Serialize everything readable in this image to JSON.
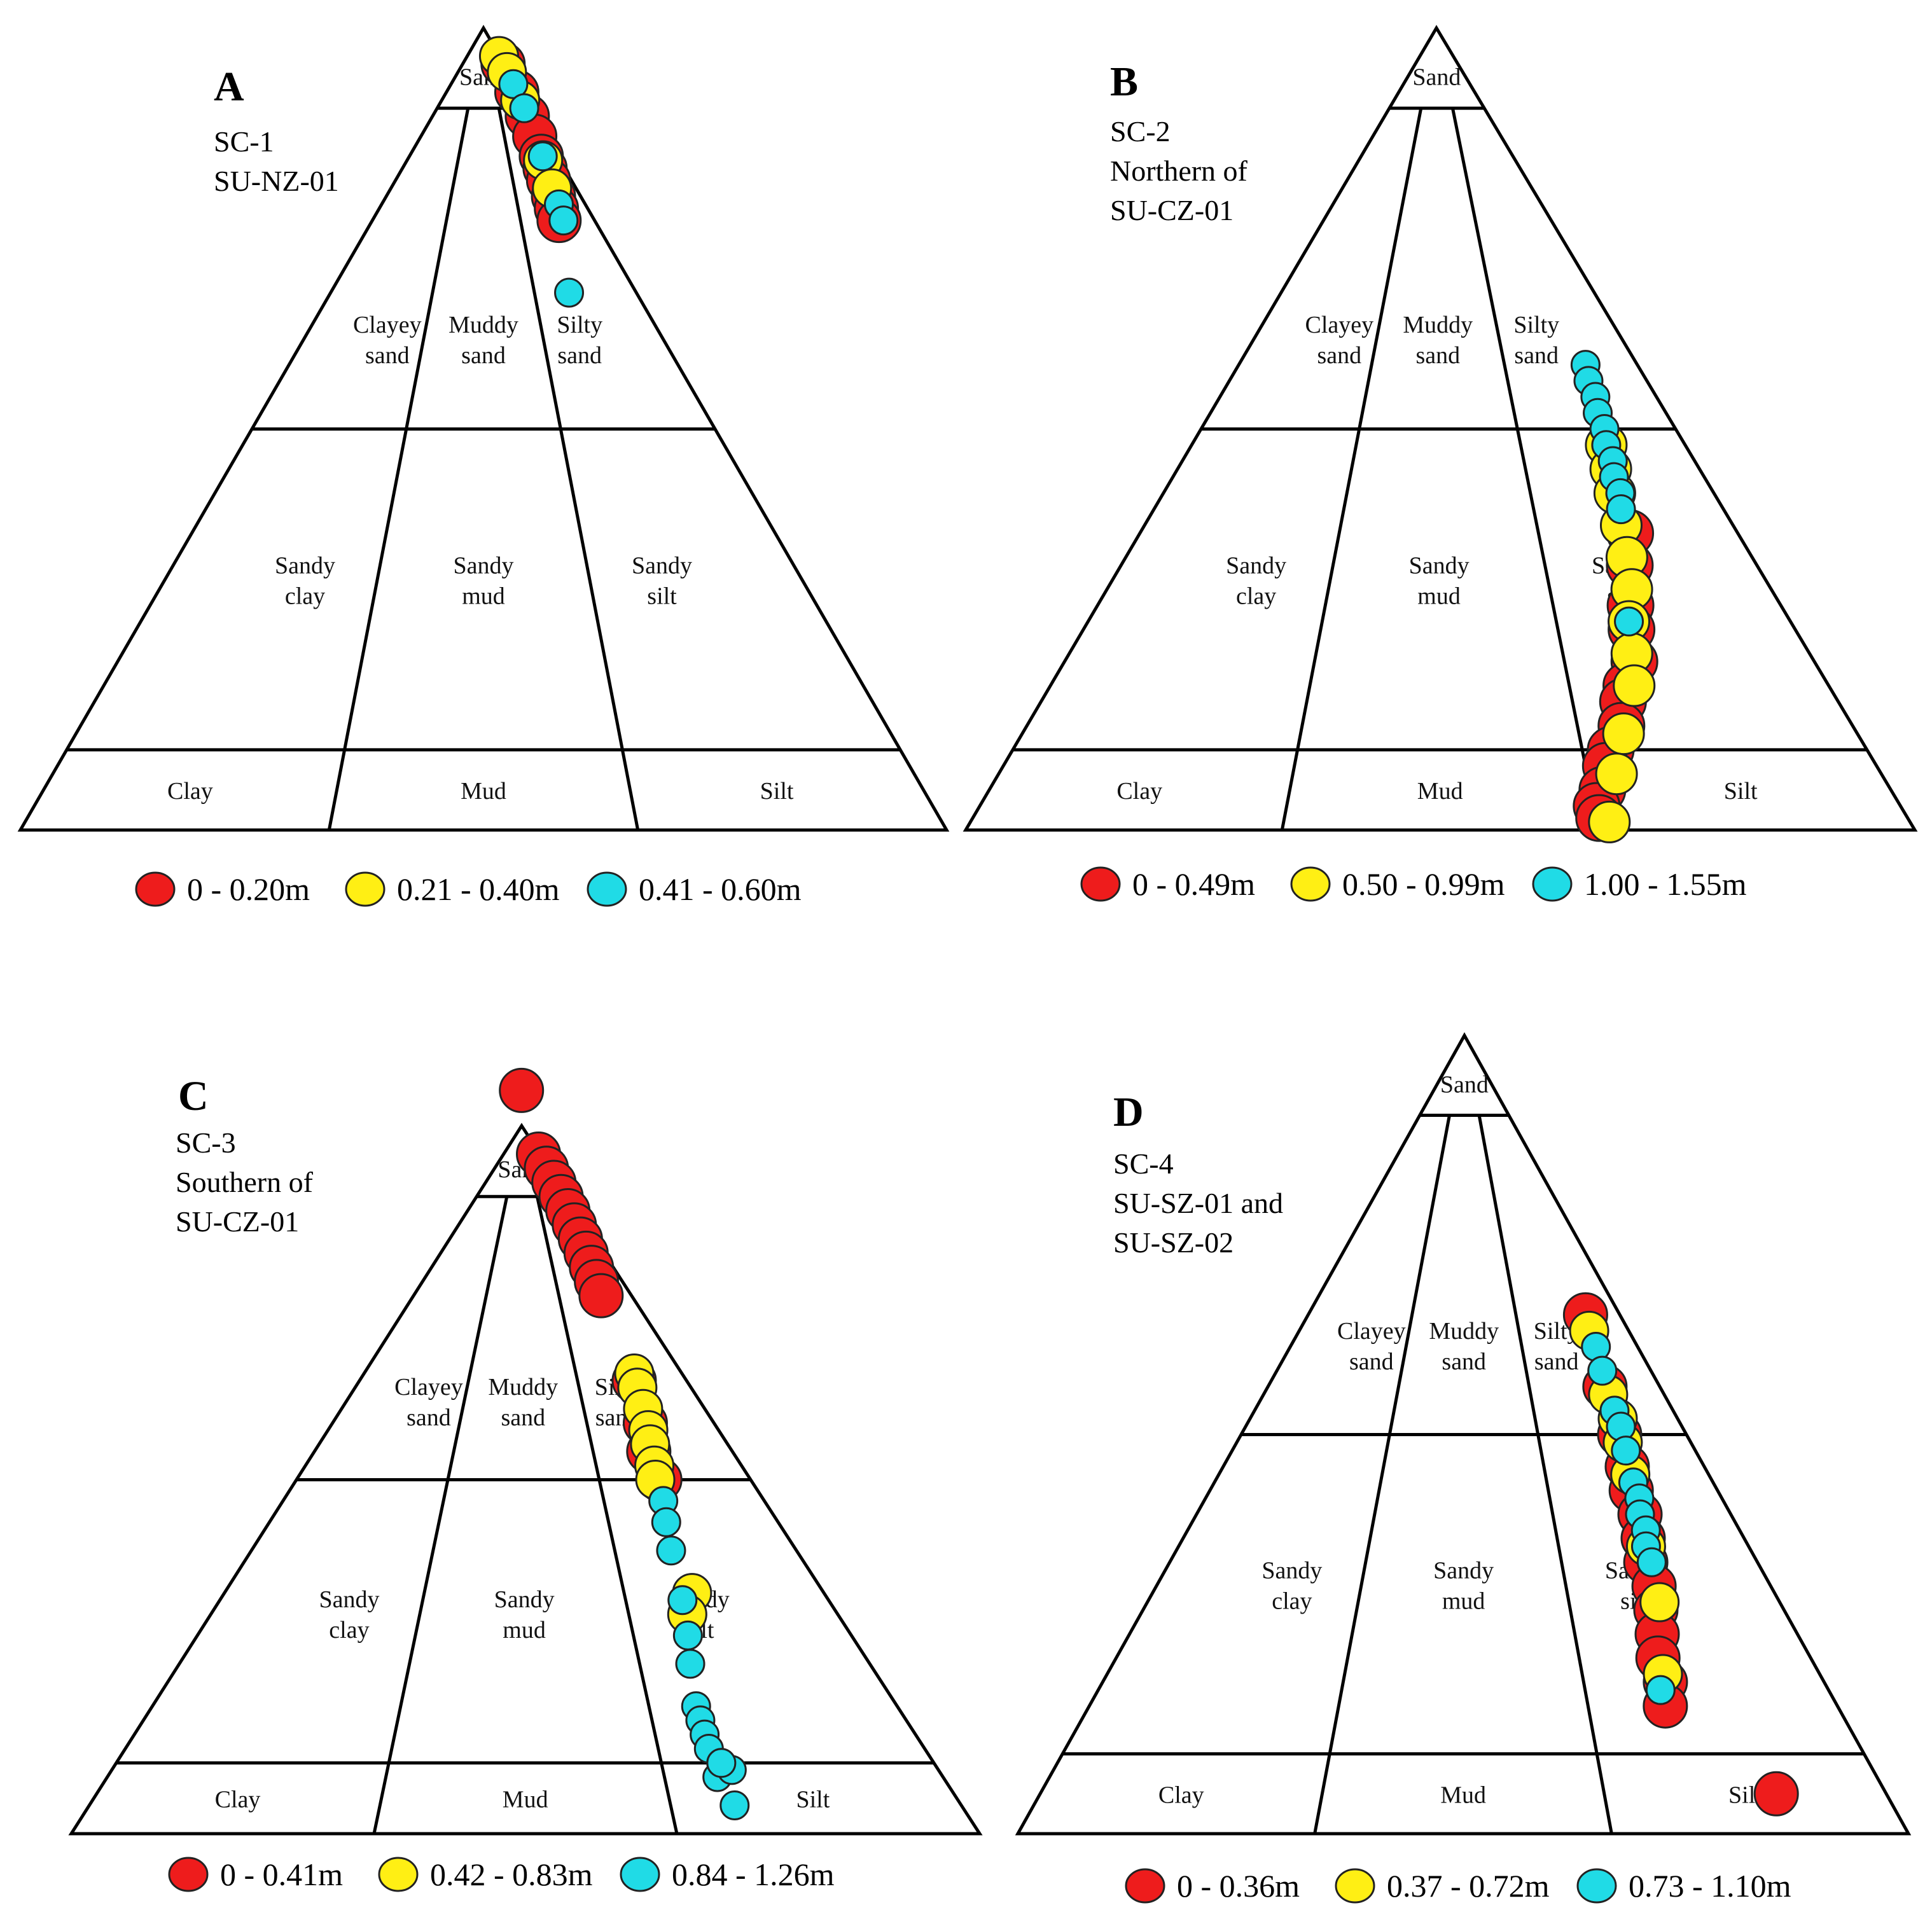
{
  "colors": {
    "red": "#ee1c1c",
    "yellow": "#ffef14",
    "cyan": "#20dbe6"
  },
  "chart_data": [
    {
      "type": "scatter",
      "letter": "A",
      "title_lines": [
        "SC-1",
        "SU-NZ-01"
      ],
      "zones": {
        "sand": "Sand",
        "clayey_sand": [
          "Clayey",
          "sand"
        ],
        "muddy_sand": [
          "Muddy",
          "sand"
        ],
        "silty_sand": [
          "Silty",
          "sand"
        ],
        "sandy_clay": [
          "Sandy",
          "clay"
        ],
        "sandy_mud": [
          "Sandy",
          "mud"
        ],
        "sandy_silt": [
          "Sandy",
          "silt"
        ],
        "clay": "Clay",
        "mud": "Mud",
        "silt": "Silt"
      },
      "legend": [
        "0 - 0.20m",
        "0.21 - 0.40m",
        "0.41 - 0.60m"
      ],
      "series": [
        {
          "name": "0 - 0.20m",
          "color": "red",
          "points": [
            [
              95.5,
              3
            ],
            [
              92,
              5
            ],
            [
              89,
              7
            ],
            [
              86.5,
              9
            ],
            [
              84,
              11
            ],
            [
              82.5,
              12
            ],
            [
              81,
              13
            ],
            [
              79,
              14
            ],
            [
              77.5,
              15
            ],
            [
              76,
              16
            ]
          ]
        },
        {
          "name": "0.21 - 0.40m",
          "color": "yellow",
          "points": [
            [
              96.5,
              2
            ],
            [
              94.5,
              4
            ],
            [
              91,
              6
            ],
            [
              83.5,
              11
            ],
            [
              80,
              13
            ]
          ]
        },
        {
          "name": "0.41 - 0.60m",
          "color": "cyan",
          "points": [
            [
              93,
              4
            ],
            [
              90,
              6
            ],
            [
              84,
              10
            ],
            [
              78,
              13
            ],
            [
              76,
              14
            ],
            [
              67,
              22
            ]
          ]
        }
      ]
    },
    {
      "type": "scatter",
      "letter": "B",
      "title_lines": [
        "SC-2",
        "Northern of",
        "SU-CZ-01"
      ],
      "zones": {
        "sand": "Sand",
        "clayey_sand": [
          "Clayey",
          "sand"
        ],
        "muddy_sand": [
          "Muddy",
          "sand"
        ],
        "silty_sand": [
          "Silty",
          "sand"
        ],
        "sandy_clay": [
          "Sandy",
          "clay"
        ],
        "sandy_mud": [
          "Sandy",
          "mud"
        ],
        "sandy_silt": [
          "Sandy",
          "silt"
        ],
        "clay": "Clay",
        "mud": "Mud",
        "silt": "Silt"
      },
      "legend": [
        "0 - 0.49m",
        "0.50 - 0.99m",
        "1.00 - 1.55m"
      ],
      "series": [
        {
          "name": "0 - 0.49m",
          "color": "red",
          "points": [
            [
              37,
              18
            ],
            [
              33,
              20
            ],
            [
              28,
              22
            ],
            [
              25,
              23
            ],
            [
              21,
              24
            ],
            [
              18,
              26
            ],
            [
              16,
              27
            ],
            [
              13,
              28
            ],
            [
              10,
              30
            ],
            [
              8,
              31
            ],
            [
              5,
              32
            ],
            [
              3,
              33
            ],
            [
              1.5,
              33
            ]
          ]
        },
        {
          "name": "0.50 - 0.99m",
          "color": "yellow",
          "points": [
            [
              48,
              16
            ],
            [
              45,
              17
            ],
            [
              42,
              18
            ],
            [
              38,
              19
            ],
            [
              34,
              20
            ],
            [
              30,
              21
            ],
            [
              26,
              23
            ],
            [
              22,
              24
            ],
            [
              18,
              25
            ],
            [
              12,
              28
            ],
            [
              7,
              30
            ],
            [
              1,
              32
            ]
          ]
        },
        {
          "name": "1.00 - 1.55m",
          "color": "cyan",
          "points": [
            [
              58,
              13
            ],
            [
              56,
              14
            ],
            [
              54,
              14
            ],
            [
              52,
              15
            ],
            [
              50,
              15
            ],
            [
              48,
              16
            ],
            [
              46,
              16
            ],
            [
              44,
              17
            ],
            [
              42,
              17
            ],
            [
              40,
              18
            ],
            [
              26,
              23
            ]
          ]
        }
      ]
    },
    {
      "type": "scatter",
      "letter": "C",
      "title_lines": [
        "SC-3",
        "Southern of",
        "SU-CZ-01"
      ],
      "zones": {
        "sand": "Sand",
        "clayey_sand": [
          "Clayey",
          "sand"
        ],
        "muddy_sand": [
          "Muddy",
          "sand"
        ],
        "silty_sand": [
          "Silty",
          "sand"
        ],
        "sandy_clay": [
          "Sandy",
          "clay"
        ],
        "sandy_mud": [
          "Sandy",
          "mud"
        ],
        "sandy_silt": [
          "Sandy",
          "silt"
        ],
        "clay": "Clay",
        "mud": "Mud",
        "silt": "Silt"
      },
      "legend": [
        "0 - 0.41m",
        "0.42 - 0.83m",
        "0.84 - 1.26m"
      ],
      "series": [
        {
          "name": "0 - 0.41m",
          "color": "red",
          "points": [
            [
              105,
              0
            ],
            [
              96,
              4
            ],
            [
              94,
              5
            ],
            [
              92,
              6
            ],
            [
              90,
              7
            ],
            [
              88,
              8
            ],
            [
              86,
              9
            ],
            [
              84,
              10
            ],
            [
              82,
              11
            ],
            [
              80,
              12
            ],
            [
              78,
              13
            ],
            [
              76,
              14
            ],
            [
              64,
              16
            ],
            [
              58,
              18
            ],
            [
              54,
              20
            ],
            [
              50,
              20
            ]
          ]
        },
        {
          "name": "0.42 - 0.83m",
          "color": "yellow",
          "points": [
            [
              65,
              15
            ],
            [
              63,
              16
            ],
            [
              60,
              17
            ],
            [
              57,
              18
            ],
            [
              55,
              19
            ],
            [
              52,
              20
            ],
            [
              50,
              21
            ],
            [
              34,
              22
            ],
            [
              31,
              24
            ]
          ]
        },
        {
          "name": "0.84 - 1.26m",
          "color": "cyan",
          "points": [
            [
              47,
              21
            ],
            [
              44,
              22
            ],
            [
              40,
              23
            ],
            [
              33,
              24
            ],
            [
              28,
              25
            ],
            [
              24,
              26
            ],
            [
              18,
              27
            ],
            [
              16,
              27
            ],
            [
              14,
              27
            ],
            [
              12,
              27
            ],
            [
              10,
              26
            ],
            [
              8,
              27
            ],
            [
              9,
              25
            ],
            [
              10,
              26
            ],
            [
              4,
              26
            ]
          ]
        }
      ]
    },
    {
      "type": "scatter",
      "letter": "D",
      "title_lines": [
        "SC-4",
        "SU-SZ-01 and",
        "SU-SZ-02"
      ],
      "zones": {
        "sand": "Sand",
        "clayey_sand": [
          "Clayey",
          "sand"
        ],
        "muddy_sand": [
          "Muddy",
          "sand"
        ],
        "silty_sand": [
          "Silty",
          "sand"
        ],
        "sandy_clay": [
          "Sandy",
          "clay"
        ],
        "sandy_mud": [
          "Sandy",
          "mud"
        ],
        "sandy_silt": [
          "Sandy",
          "silt"
        ],
        "clay": "Clay",
        "mud": "Mud",
        "silt": "Silt"
      },
      "legend": [
        "0 - 0.36m",
        "0.37 - 0.72m",
        "0.73 - 1.10m"
      ],
      "series": [
        {
          "name": "0 - 0.36m",
          "color": "red",
          "points": [
            [
              65,
              11
            ],
            [
              56,
              14
            ],
            [
              50,
              15
            ],
            [
              46,
              16
            ],
            [
              43,
              17
            ],
            [
              40,
              17
            ],
            [
              37,
              18
            ],
            [
              34,
              19
            ],
            [
              31,
              19
            ],
            [
              28,
              20
            ],
            [
              25,
              21
            ],
            [
              22,
              22
            ],
            [
              19,
              22
            ],
            [
              16,
              23
            ],
            [
              5,
              13
            ]
          ]
        },
        {
          "name": "0.37 - 0.72m",
          "color": "yellow",
          "points": [
            [
              63,
              12
            ],
            [
              55,
              14
            ],
            [
              52,
              14
            ],
            [
              49,
              15
            ],
            [
              45,
              16
            ],
            [
              36,
              18
            ],
            [
              29,
              19
            ],
            [
              20,
              22
            ]
          ]
        },
        {
          "name": "0.73 - 1.10m",
          "color": "cyan",
          "points": [
            [
              61,
              12
            ],
            [
              58,
              13
            ],
            [
              53,
              14
            ],
            [
              51,
              14
            ],
            [
              48,
              15
            ],
            [
              44,
              16
            ],
            [
              42,
              16
            ],
            [
              40,
              17
            ],
            [
              38,
              17
            ],
            [
              36,
              18
            ],
            [
              34,
              18
            ],
            [
              18,
              23
            ]
          ]
        }
      ]
    }
  ]
}
